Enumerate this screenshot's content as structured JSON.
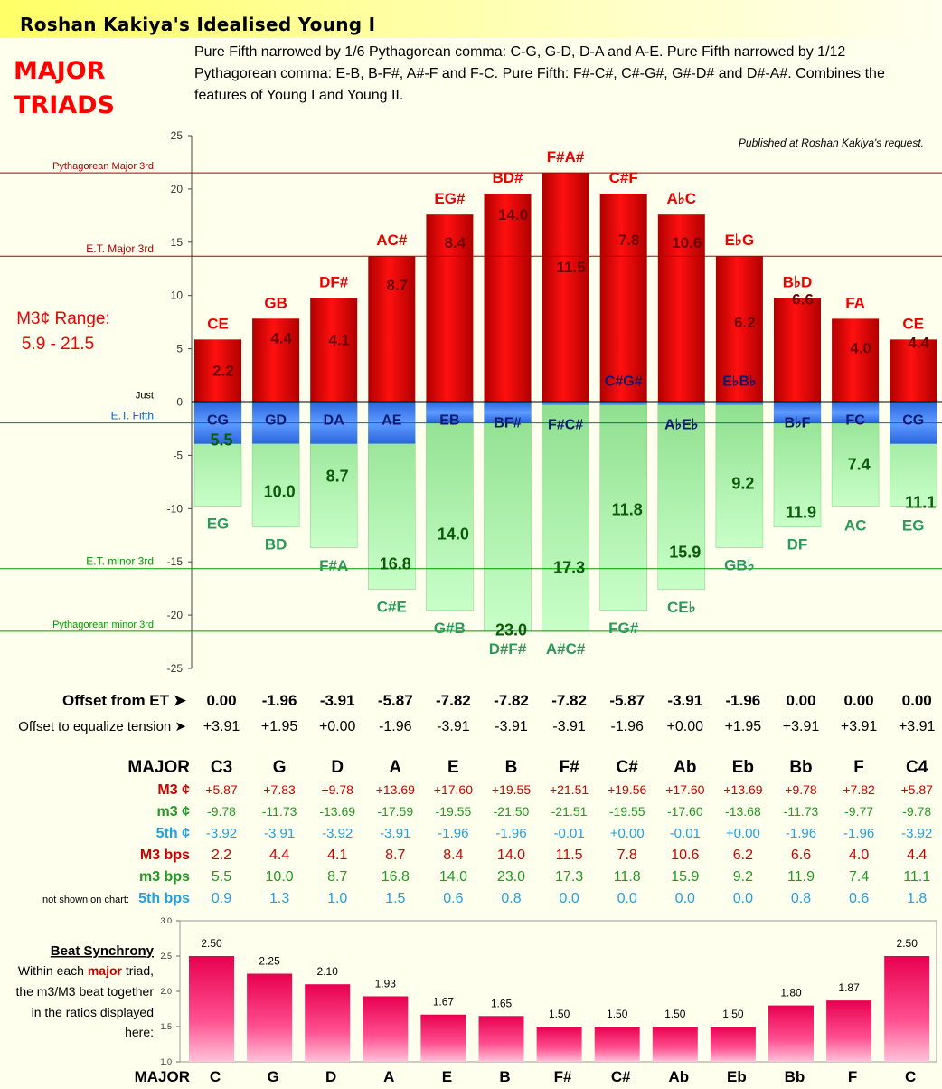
{
  "title": "Roshan Kakiya's Idealised Young I",
  "section_title": "MAJOR TRIADS",
  "description": "Pure Fifth narrowed by 1/6 Pythagorean comma: C-G, G-D, D-A and A-E. Pure Fifth narrowed by 1/12 Pythagorean comma: E-B, B-F#, A#-F and F-C. Pure Fifth: F#-C#, C#-G#, G#-D# and D#-A#. Combines the features of Young I and Young II.",
  "note": "Published at Roshan Kakiya's request.",
  "range_label": "M3¢ Range:",
  "range_value": "5.9 - 21.5",
  "colors": {
    "major": "#dd0000",
    "minor": "#88e888",
    "fifth": "#3377ee",
    "sync": "#ee1166",
    "ref_red": "#aa0000",
    "ref_green": "#009900",
    "ref_blue": "#0066cc",
    "text_m3": "#cc0000",
    "text_minor": "#008800",
    "text_fifth": "#22a0e0"
  },
  "chart_data": [
    {
      "type": "bar",
      "categories": [
        "C3",
        "G",
        "D",
        "A",
        "E",
        "B",
        "F#",
        "C#",
        "Ab",
        "Eb",
        "Bb",
        "F",
        "C4"
      ],
      "ylim": [
        -25,
        25
      ],
      "yticks": [
        25,
        20,
        15,
        10,
        5,
        0,
        -5,
        -10,
        -15,
        -20,
        -25
      ],
      "series": [
        {
          "name": "M3 ¢",
          "values": [
            5.87,
            7.83,
            9.78,
            13.69,
            17.6,
            19.55,
            21.51,
            19.56,
            17.6,
            13.69,
            9.78,
            7.82,
            5.87
          ],
          "labels": [
            "CE",
            "GB",
            "DF#",
            "AC#",
            "EG#",
            "BD#",
            "F#A#",
            "C#F",
            "A♭C",
            "E♭G",
            "B♭D",
            "FA",
            "CE"
          ],
          "bps": [
            "2.2",
            "4.4",
            "4.1",
            "8.7",
            "8.4",
            "14.0",
            "11.5",
            "7.8",
            "10.6",
            "6.2",
            "6.6",
            "4.0",
            "4.4"
          ]
        },
        {
          "name": "m3 ¢",
          "values": [
            -9.78,
            -11.73,
            -13.69,
            -17.59,
            -19.55,
            -21.5,
            -21.51,
            -19.55,
            -17.6,
            -13.68,
            -11.73,
            -9.77,
            -9.78
          ],
          "labels": [
            "EG",
            "BD",
            "F#A",
            "C#E",
            "G#B",
            "D#F#",
            "A#C#",
            "FG#",
            "CE♭",
            "GB♭",
            "DF",
            "AC",
            "EG"
          ],
          "bps": [
            "5.5",
            "10.0",
            "8.7",
            "16.8",
            "14.0",
            "23.0",
            "17.3",
            "11.8",
            "15.9",
            "9.2",
            "11.9",
            "7.4",
            "11.1"
          ]
        },
        {
          "name": "5th ¢",
          "values": [
            -3.92,
            -3.91,
            -3.92,
            -3.91,
            -1.96,
            -1.96,
            -0.01,
            0.0,
            -0.01,
            0.0,
            -1.96,
            -1.96,
            -3.92
          ],
          "labels": [
            "CG",
            "GD",
            "DA",
            "AE",
            "EB",
            "BF#",
            "F#C#",
            "C#G#",
            "A♭E♭",
            "E♭B♭",
            "B♭F",
            "FC",
            "CG"
          ]
        }
      ],
      "reference_lines": [
        {
          "label": "Pythagorean Major 3rd",
          "value": 21.51
        },
        {
          "label": "E.T. Major 3rd",
          "value": 13.69
        },
        {
          "label": "Just",
          "value": 0
        },
        {
          "label": "E.T. Fifth",
          "value": -1.96
        },
        {
          "label": "E.T. minor 3rd",
          "value": -15.64
        },
        {
          "label": "Pythagorean minor 3rd",
          "value": -21.51
        }
      ]
    },
    {
      "type": "bar",
      "title": "Beat Synchrony",
      "categories": [
        "C",
        "G",
        "D",
        "A",
        "E",
        "B",
        "F#",
        "C#",
        "Ab",
        "Eb",
        "Bb",
        "F",
        "C"
      ],
      "values": [
        2.5,
        2.25,
        2.1,
        1.93,
        1.67,
        1.65,
        1.5,
        1.5,
        1.5,
        1.5,
        1.8,
        1.87,
        2.5
      ],
      "ylim": [
        1.0,
        3.0
      ],
      "yticks": [
        "3.0",
        "2.5",
        "2.0",
        "1.5",
        "1.0"
      ]
    }
  ],
  "offsets": {
    "et_label": "Offset from ET ➤",
    "et": [
      "0.00",
      "-1.96",
      "-3.91",
      "-5.87",
      "-7.82",
      "-7.82",
      "-7.82",
      "-5.87",
      "-3.91",
      "-1.96",
      "0.00",
      "0.00",
      "0.00"
    ],
    "eq_label": "Offset to equalize tension ➤",
    "eq": [
      "+3.91",
      "+1.95",
      "+0.00",
      "-1.96",
      "-3.91",
      "-3.91",
      "-3.91",
      "-1.96",
      "+0.00",
      "+1.95",
      "+3.91",
      "+3.91",
      "+3.91"
    ]
  },
  "table": {
    "header_label": "MAJOR",
    "header": [
      "C3",
      "G",
      "D",
      "A",
      "E",
      "B",
      "F#",
      "C#",
      "Ab",
      "Eb",
      "Bb",
      "F",
      "C4"
    ],
    "m3c_label": "M3 ¢",
    "m3c": [
      "+5.87",
      "+7.83",
      "+9.78",
      "+13.69",
      "+17.60",
      "+19.55",
      "+21.51",
      "+19.56",
      "+17.60",
      "+13.69",
      "+9.78",
      "+7.82",
      "+5.87"
    ],
    "minc_label": "m3 ¢",
    "minc": [
      "-9.78",
      "-11.73",
      "-13.69",
      "-17.59",
      "-19.55",
      "-21.50",
      "-21.51",
      "-19.55",
      "-17.60",
      "-13.68",
      "-11.73",
      "-9.77",
      "-9.78"
    ],
    "fifc_label": "5th ¢",
    "fifc": [
      "-3.92",
      "-3.91",
      "-3.92",
      "-3.91",
      "-1.96",
      "-1.96",
      "-0.01",
      "+0.00",
      "-0.01",
      "+0.00",
      "-1.96",
      "-1.96",
      "-3.92"
    ],
    "m3b_label": "M3 bps",
    "m3b": [
      "2.2",
      "4.4",
      "4.1",
      "8.7",
      "8.4",
      "14.0",
      "11.5",
      "7.8",
      "10.6",
      "6.2",
      "6.6",
      "4.0",
      "4.4"
    ],
    "minb_label": "m3 bps",
    "minb": [
      "5.5",
      "10.0",
      "8.7",
      "16.8",
      "14.0",
      "23.0",
      "17.3",
      "11.8",
      "15.9",
      "9.2",
      "11.9",
      "7.4",
      "11.1"
    ],
    "fifb_note": "not shown on chart:",
    "fifb_label": "5th bps",
    "fifb": [
      "0.9",
      "1.3",
      "1.0",
      "1.5",
      "0.6",
      "0.8",
      "0.0",
      "0.0",
      "0.0",
      "0.0",
      "0.8",
      "0.6",
      "1.8"
    ]
  },
  "sync_text": {
    "heading": "Beat Synchrony",
    "line1": "Within each ",
    "emph": "major",
    "line1b": " triad,",
    "line2": "the m3/M3 beat together",
    "line3": "in the ratios displayed",
    "line4": "here:",
    "axis_label": "MAJOR"
  }
}
